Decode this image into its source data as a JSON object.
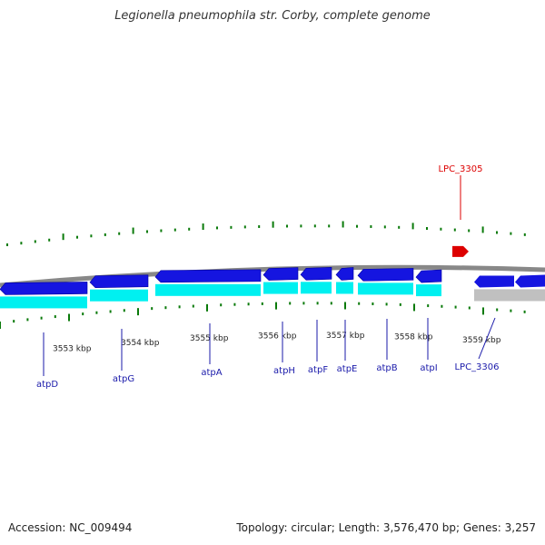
{
  "title": "Legionella pneumophila str. Corby, complete genome",
  "footer": {
    "accession": "Accession: NC_009494",
    "summary": "Topology: circular; Length: 3,576,470 bp; Genes: 3,257"
  },
  "colors": {
    "backbone": "#888888",
    "gene_dark": "#1515e0",
    "gene_light": "#00f0f0",
    "gene_grey": "#c0c0c0",
    "tick_green": "#0a7a0a",
    "gene_label": "#1a1aaa",
    "highlight": "#dd0000"
  },
  "scale": {
    "unit": "kbp",
    "major_ticks": [
      3553,
      3554,
      3555,
      3556,
      3557,
      3558,
      3559
    ],
    "labels": [
      "3553 kbp",
      "3554 kbp",
      "3555 kbp",
      "3556 kbp",
      "3557 kbp",
      "3558 kbp",
      "3559 kbp"
    ]
  },
  "genes": [
    {
      "name": "atpD",
      "track": "lower",
      "strand": "-"
    },
    {
      "name": "atpG",
      "track": "lower",
      "strand": "-"
    },
    {
      "name": "atpA",
      "track": "lower",
      "strand": "-"
    },
    {
      "name": "atpH",
      "track": "lower",
      "strand": "-"
    },
    {
      "name": "atpF",
      "track": "lower",
      "strand": "-"
    },
    {
      "name": "atpE",
      "track": "lower",
      "strand": "-"
    },
    {
      "name": "atpB",
      "track": "lower",
      "strand": "-"
    },
    {
      "name": "atpI",
      "track": "lower",
      "strand": "-"
    },
    {
      "name": "LPC_3306",
      "track": "lower",
      "strand": "-"
    },
    {
      "name": "LPC_3305",
      "track": "upper",
      "strand": "+"
    }
  ]
}
